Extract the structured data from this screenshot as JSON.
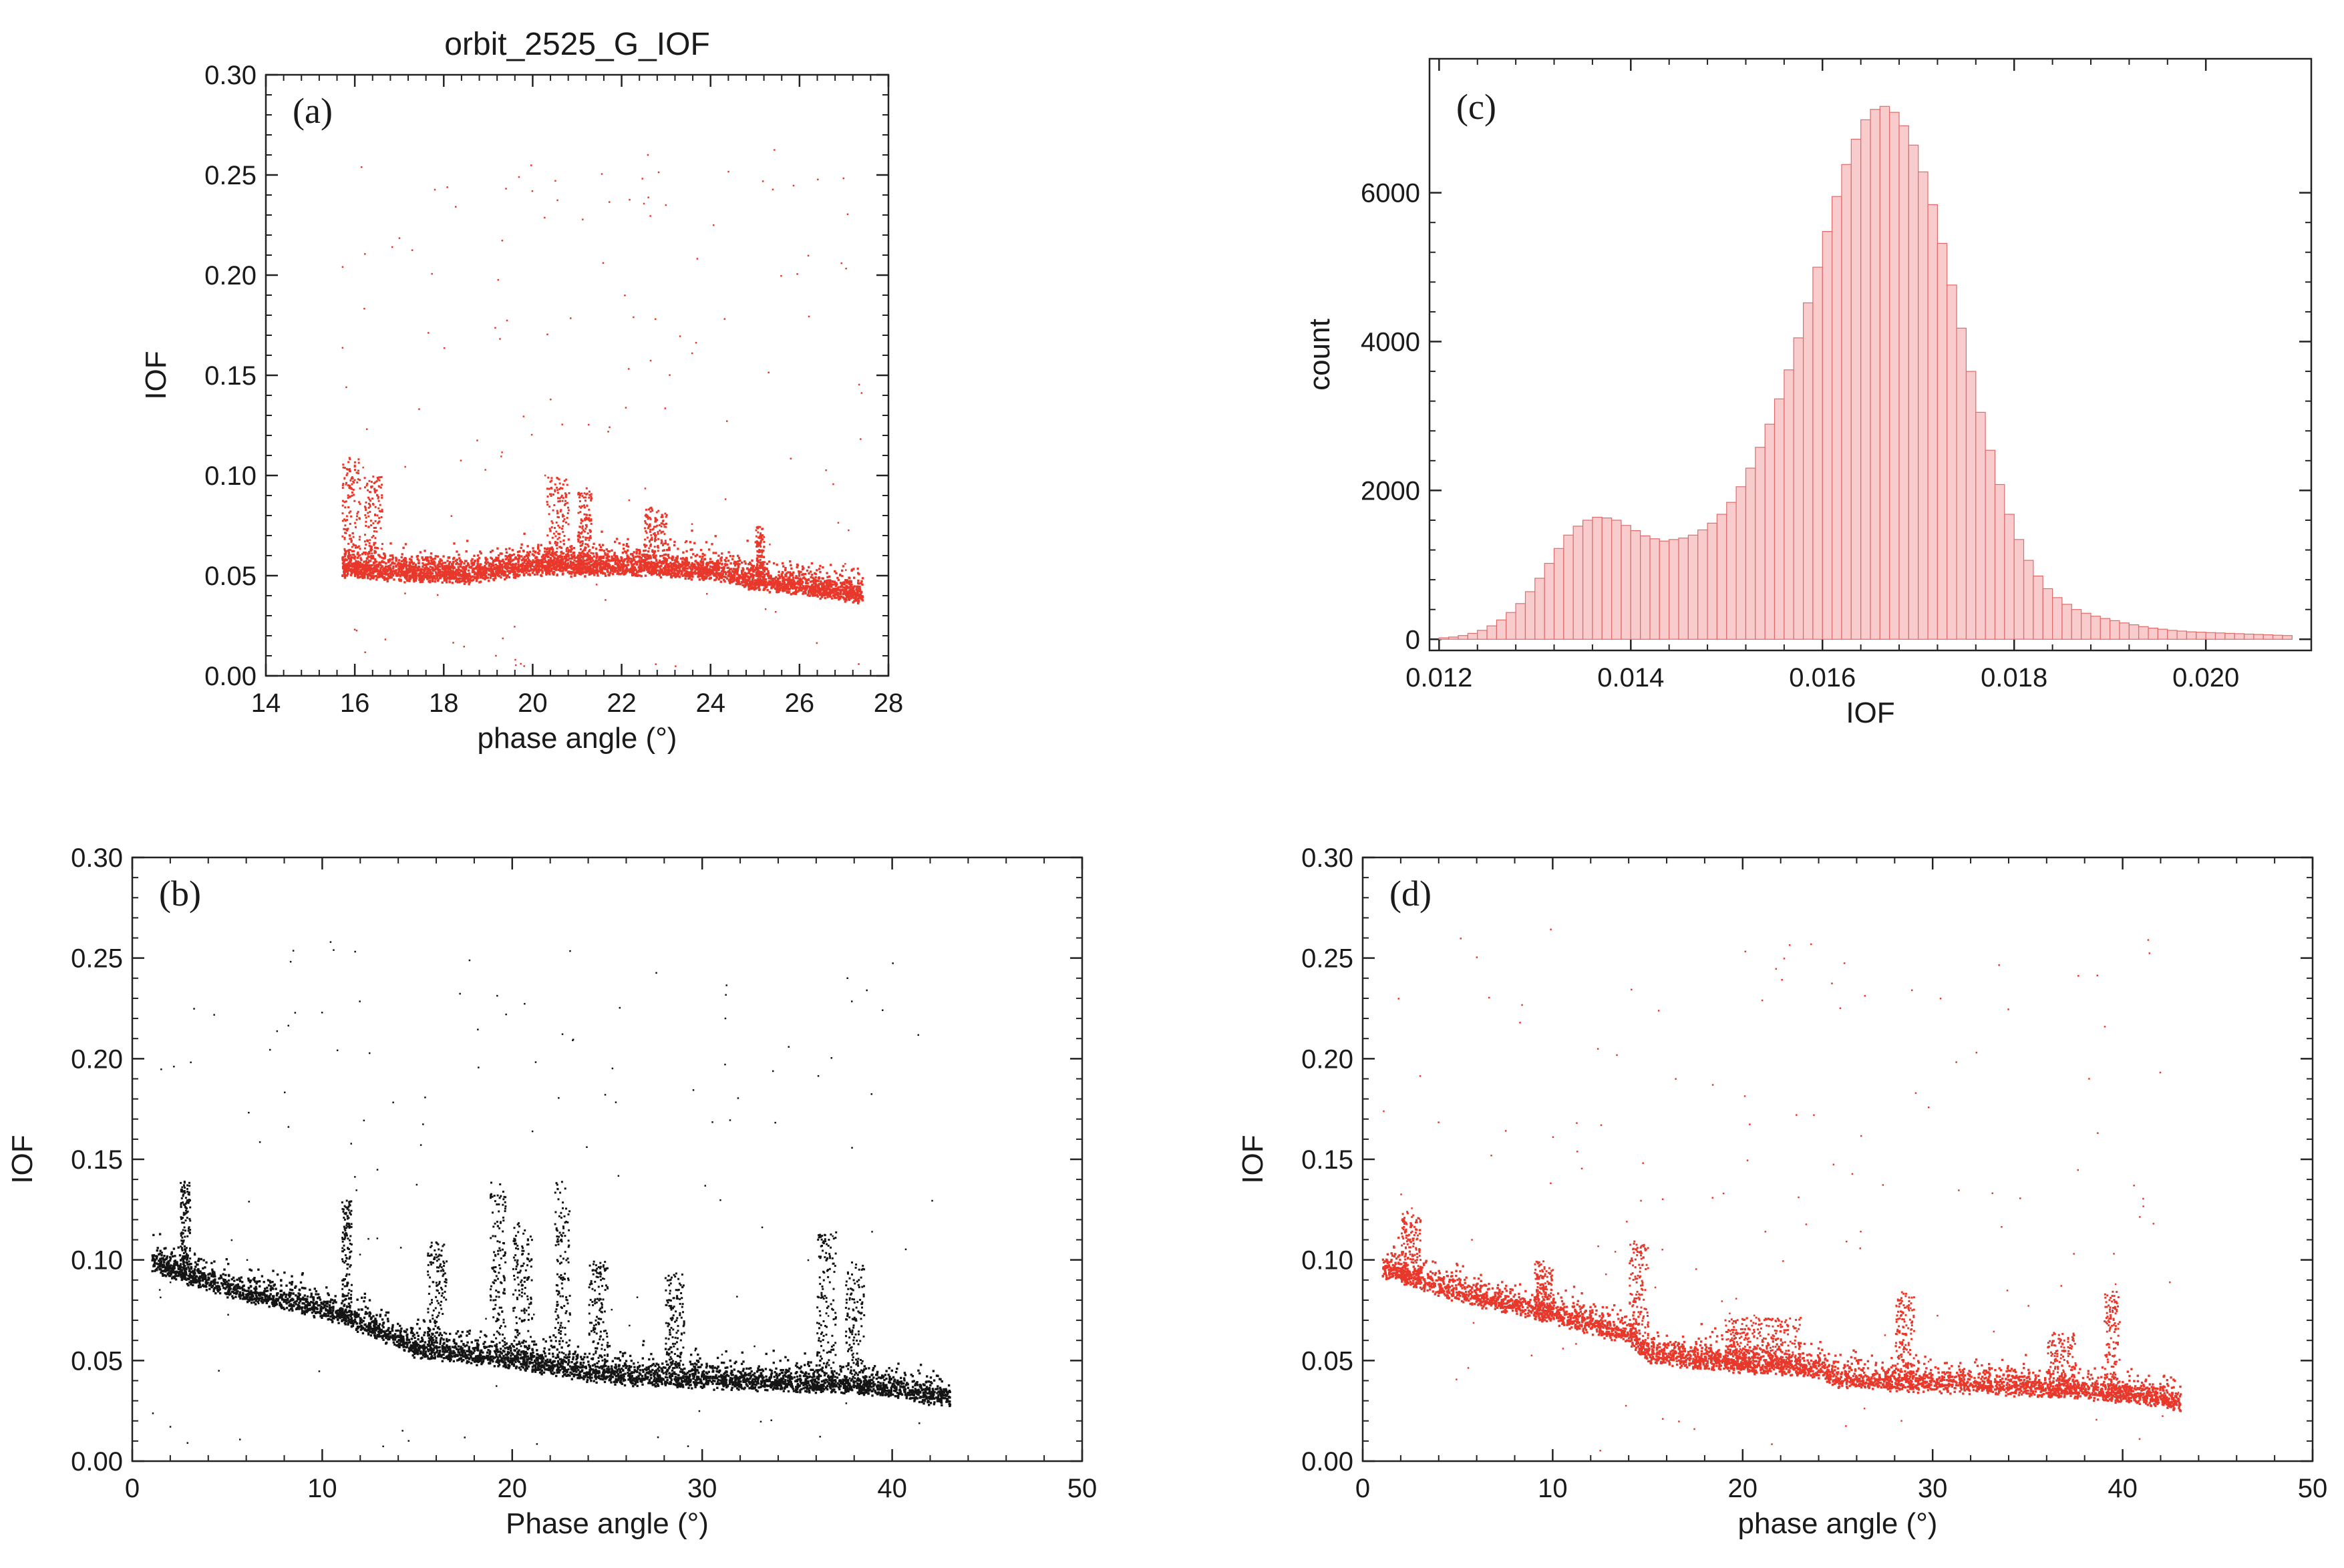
{
  "chart_data": [
    {
      "id": "a",
      "type": "scatter",
      "panel_label": "(a)",
      "title": "orbit_2525_G_IOF",
      "xlabel": "phase angle  (°)",
      "ylabel": "IOF",
      "xlim": [
        14,
        28
      ],
      "ylim": [
        0,
        0.3
      ],
      "xticks": [
        "14",
        "16",
        "18",
        "20",
        "22",
        "24",
        "26",
        "28"
      ],
      "yticks": [
        "0.00",
        "0.05",
        "0.10",
        "0.15",
        "0.20",
        "0.25",
        "0.30"
      ],
      "color": "#e8382b",
      "trend": [
        [
          15.7,
          0.053
        ],
        [
          17,
          0.051
        ],
        [
          18.5,
          0.05
        ],
        [
          20,
          0.054
        ],
        [
          22,
          0.054
        ],
        [
          24,
          0.052
        ],
        [
          25,
          0.046
        ],
        [
          26,
          0.044
        ],
        [
          27.4,
          0.04
        ]
      ],
      "bursts": [
        [
          15.7,
          16.1,
          0.11
        ],
        [
          16.2,
          16.6,
          0.1
        ],
        [
          20.3,
          20.8,
          0.1
        ],
        [
          21.0,
          21.3,
          0.095
        ],
        [
          22.5,
          23.0,
          0.085
        ],
        [
          25.0,
          25.2,
          0.075
        ]
      ]
    },
    {
      "id": "c",
      "type": "bar",
      "panel_label": "(c)",
      "title": "",
      "xlabel": "IOF",
      "ylabel": "count",
      "xlim": [
        0.0119,
        0.0211
      ],
      "ylim": [
        -150,
        7800
      ],
      "xticks": [
        "0.012",
        "0.014",
        "0.016",
        "0.018",
        "0.020"
      ],
      "yticks": [
        "0",
        "2000",
        "4000",
        "6000"
      ],
      "bin_width": 0.0001,
      "bin_start": 0.012,
      "color": "#f8cccc",
      "edge_color": "#e06a6a",
      "values": [
        20,
        30,
        50,
        80,
        120,
        180,
        260,
        360,
        480,
        640,
        820,
        1020,
        1220,
        1400,
        1520,
        1600,
        1640,
        1630,
        1600,
        1530,
        1460,
        1390,
        1350,
        1320,
        1340,
        1360,
        1400,
        1470,
        1560,
        1680,
        1840,
        2050,
        2300,
        2580,
        2890,
        3230,
        3620,
        4050,
        4520,
        5000,
        5480,
        5950,
        6380,
        6720,
        6980,
        7120,
        7160,
        7080,
        6900,
        6640,
        6280,
        5840,
        5320,
        4760,
        4180,
        3600,
        3050,
        2540,
        2080,
        1680,
        1340,
        1060,
        850,
        680,
        560,
        470,
        400,
        350,
        310,
        280,
        250,
        220,
        195,
        170,
        150,
        135,
        120,
        110,
        100,
        95,
        90,
        85,
        80,
        75,
        70,
        65,
        60,
        55,
        50
      ]
    },
    {
      "id": "b",
      "type": "scatter",
      "panel_label": "(b)",
      "title": "",
      "xlabel": "Phase angle   (°)",
      "ylabel": "IOF",
      "xlim": [
        0,
        50
      ],
      "ylim": [
        0,
        0.3
      ],
      "xticks": [
        "0",
        "10",
        "20",
        "30",
        "40",
        "50"
      ],
      "yticks": [
        "0.00",
        "0.05",
        "0.10",
        "0.15",
        "0.20",
        "0.25",
        "0.30"
      ],
      "color": "#141414",
      "trend": [
        [
          1,
          0.098
        ],
        [
          5,
          0.085
        ],
        [
          10,
          0.075
        ],
        [
          12,
          0.068
        ],
        [
          15,
          0.055
        ],
        [
          20,
          0.05
        ],
        [
          25,
          0.042
        ],
        [
          30,
          0.04
        ],
        [
          35,
          0.038
        ],
        [
          40,
          0.036
        ],
        [
          43,
          0.03
        ]
      ],
      "bursts": [
        [
          2.5,
          3.0,
          0.14
        ],
        [
          11,
          11.5,
          0.13
        ],
        [
          15.5,
          16.5,
          0.11
        ],
        [
          18.8,
          19.6,
          0.14
        ],
        [
          20,
          21,
          0.12
        ],
        [
          22.2,
          23.0,
          0.14
        ],
        [
          24,
          25,
          0.1
        ],
        [
          28,
          29,
          0.095
        ],
        [
          36,
          37,
          0.115
        ],
        [
          37.5,
          38.5,
          0.1
        ]
      ]
    },
    {
      "id": "d",
      "type": "scatter",
      "panel_label": "(d)",
      "title": "",
      "xlabel": "phase angle (°)",
      "ylabel": "IOF",
      "xlim": [
        0,
        50
      ],
      "ylim": [
        0,
        0.3
      ],
      "xticks": [
        "0",
        "10",
        "20",
        "30",
        "40",
        "50"
      ],
      "yticks": [
        "0.00",
        "0.05",
        "0.10",
        "0.15",
        "0.20",
        "0.25",
        "0.30"
      ],
      "color": "#e8382b",
      "trend": [
        [
          1,
          0.095
        ],
        [
          5,
          0.083
        ],
        [
          10,
          0.072
        ],
        [
          14,
          0.062
        ],
        [
          15,
          0.052
        ],
        [
          20,
          0.048
        ],
        [
          24,
          0.045
        ],
        [
          25,
          0.04
        ],
        [
          30,
          0.038
        ],
        [
          35,
          0.036
        ],
        [
          40,
          0.033
        ],
        [
          43,
          0.029
        ]
      ],
      "bursts": [
        [
          2,
          3,
          0.125
        ],
        [
          9,
          10,
          0.1
        ],
        [
          14,
          15,
          0.11
        ],
        [
          19,
          21,
          0.072
        ],
        [
          21,
          23,
          0.072
        ],
        [
          28,
          29,
          0.085
        ],
        [
          36,
          37.5,
          0.065
        ],
        [
          39,
          39.8,
          0.085
        ]
      ]
    }
  ]
}
